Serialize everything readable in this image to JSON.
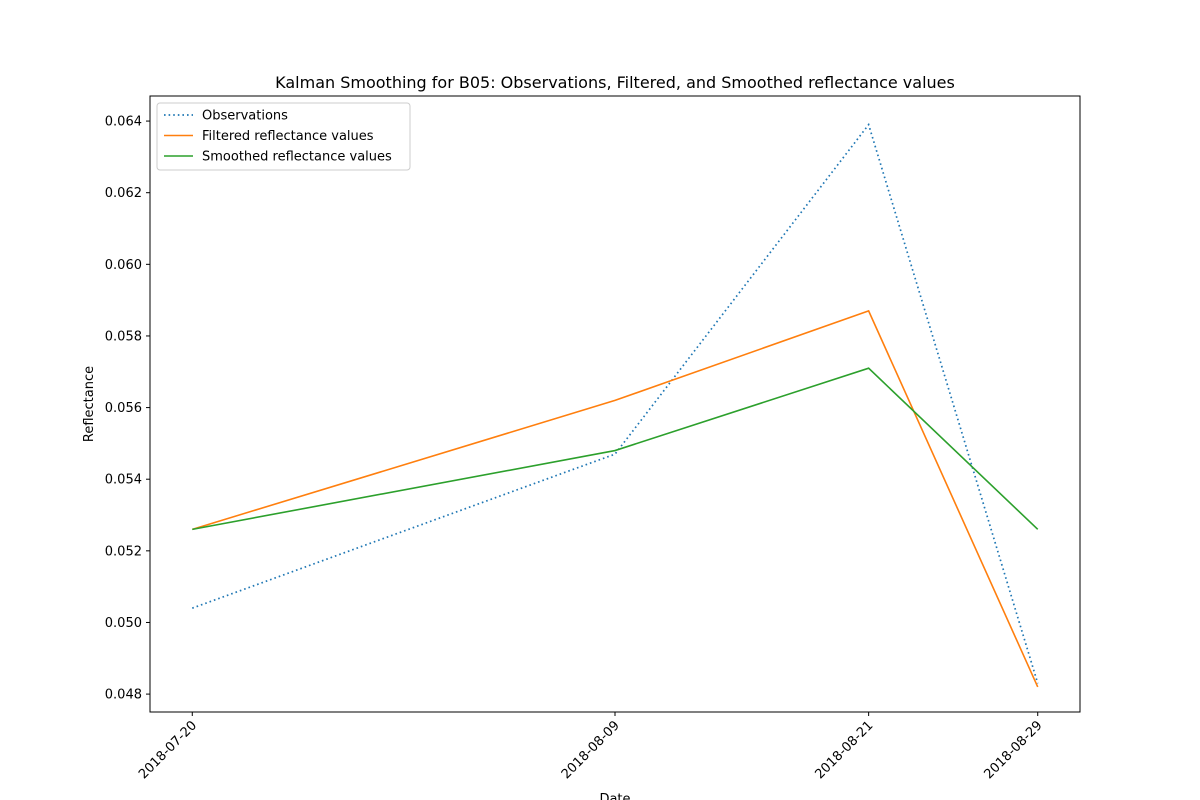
{
  "chart_data": {
    "type": "line",
    "title": "Kalman Smoothing for  B05: Observations, Filtered, and Smoothed reflectance values",
    "xlabel": "Date",
    "ylabel": "Reflectance",
    "x": [
      "2018-07-20",
      "2018-08-09",
      "2018-08-21",
      "2018-08-29"
    ],
    "x_ticks": [
      "2018-07-20",
      "2018-08-09",
      "2018-08-21",
      "2018-08-29"
    ],
    "y_ticks": [
      "0.048",
      "0.050",
      "0.052",
      "0.054",
      "0.056",
      "0.058",
      "0.060",
      "0.062",
      "0.064"
    ],
    "ylim": [
      0.0475,
      0.0647
    ],
    "grid": false,
    "legend_position": "top-left",
    "series": [
      {
        "name": "Observations",
        "color": "#1f77b4",
        "style": "dotted",
        "values": [
          0.0504,
          0.0547,
          0.0639,
          0.0483
        ]
      },
      {
        "name": "Filtered reflectance values",
        "color": "#ff7f0e",
        "style": "solid",
        "values": [
          0.0526,
          0.0562,
          0.0587,
          0.0482
        ]
      },
      {
        "name": "Smoothed reflectance values",
        "color": "#2ca02c",
        "style": "solid",
        "values": [
          0.0526,
          0.0548,
          0.0571,
          0.0526
        ]
      }
    ]
  }
}
